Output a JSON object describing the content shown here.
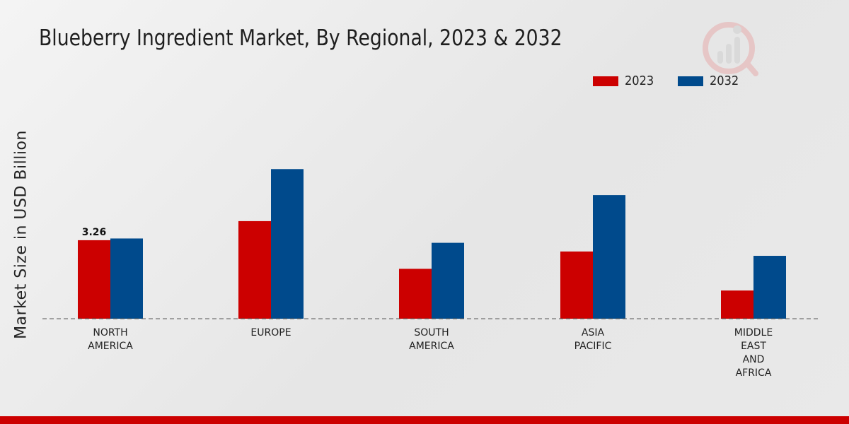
{
  "chart_data": {
    "type": "bar",
    "title": "Blueberry Ingredient Market, By Regional, 2023 & 2032",
    "xlabel": "",
    "ylabel": "Market Size in USD Billion",
    "categories": [
      [
        "NORTH",
        "AMERICA"
      ],
      [
        "EUROPE"
      ],
      [
        "SOUTH",
        "AMERICA"
      ],
      [
        "ASIA",
        "PACIFIC"
      ],
      [
        "MIDDLE",
        "EAST",
        "AND",
        "AFRICA"
      ]
    ],
    "series": [
      {
        "name": "2023",
        "color": "#cc0000",
        "values": [
          3.26,
          3.7,
          2.6,
          3.0,
          2.1
        ]
      },
      {
        "name": "2032",
        "color": "#004a8c",
        "values": [
          3.3,
          4.9,
          3.2,
          4.3,
          2.9
        ]
      }
    ],
    "data_labels": [
      {
        "series": 0,
        "category": 0,
        "text": "3.26"
      }
    ],
    "ylim": [
      1.45,
      5.1
    ],
    "grid": false,
    "legend": "top-right"
  },
  "colors": {
    "accent_bar": "#cc0000",
    "baseline": "#555555"
  },
  "logo": {
    "icon": "company-logo-icon"
  }
}
